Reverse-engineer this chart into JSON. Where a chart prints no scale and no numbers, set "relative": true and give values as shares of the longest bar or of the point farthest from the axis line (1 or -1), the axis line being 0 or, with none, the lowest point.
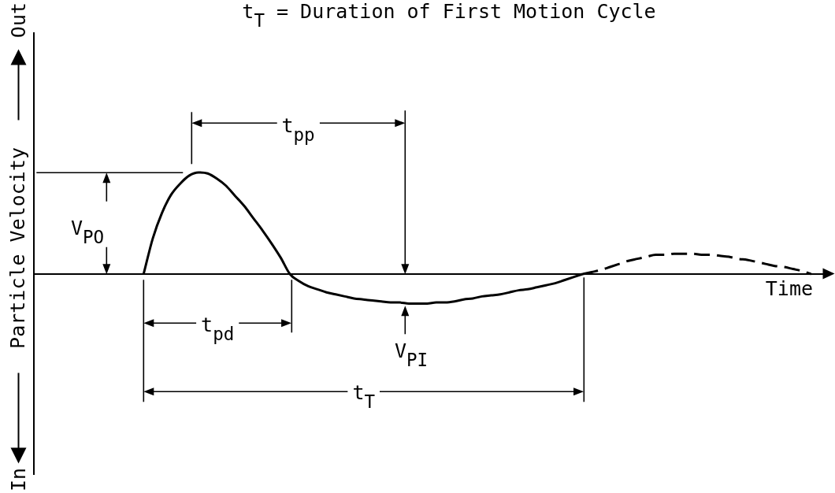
{
  "chart_data": {
    "type": "line",
    "title": "t$_{T}$ = Duration of First Motion Cycle",
    "xlabel": "Time",
    "ylabel": "Particle Velocity",
    "annotations": [
      "V$_{PO}$",
      "t$_{pp}$",
      "t$_{pd}$",
      "V$_{PI}$",
      "t$_{T}$",
      "Out",
      "In"
    ],
    "categories": [
      null,
      null,
      null,
      null,
      null,
      null,
      null,
      null,
      null,
      null,
      null,
      null,
      null,
      null,
      null,
      null,
      null,
      null,
      null,
      null,
      null,
      null,
      null,
      null,
      null,
      null,
      null,
      null,
      null,
      null,
      null,
      null,
      null,
      null,
      null,
      null,
      null,
      null,
      null,
      null,
      null,
      null,
      null,
      null,
      null,
      null,
      null,
      null,
      null,
      null,
      null,
      null,
      null,
      null,
      null,
      null,
      null,
      null,
      null,
      null,
      null,
      null,
      null,
      null,
      null,
      null,
      null,
      null,
      null,
      null,
      null,
      null,
      null,
      null,
      null,
      null,
      null,
      null,
      null,
      null,
      null,
      null,
      null,
      null,
      null,
      null,
      null,
      null
    ],
    "relative": true,
    "series": [
      {
        "color": "#000000",
        "line_style": "solid",
        "values": [
          null,
          null,
          null,
          null,
          null,
          null,
          null,
          null,
          null,
          null,
          null,
          null,
          0,
          0.35,
          0.6,
          0.78,
          0.89,
          0.97,
          1,
          0.99,
          0.94,
          0.87,
          0.77,
          0.67,
          0.55,
          0.43,
          0.3,
          0.16,
          0,
          -0.07,
          -0.12,
          -0.15,
          -0.18,
          -0.2,
          -0.22,
          -0.24,
          -0.25,
          -0.26,
          -0.27,
          -0.28,
          -0.28,
          -0.29,
          -0.29,
          -0.29,
          -0.28,
          -0.28,
          -0.27,
          -0.25,
          -0.24,
          -0.22,
          -0.21,
          -0.2,
          -0.18,
          -0.16,
          -0.15,
          -0.13,
          -0.11,
          -0.09,
          -0.06,
          -0.03,
          0,
          null,
          null,
          null,
          null,
          null,
          null,
          null,
          null,
          null,
          null,
          null,
          null,
          null,
          null,
          null,
          null,
          null,
          null,
          null,
          null,
          null,
          null,
          null,
          null,
          null,
          null,
          null
        ]
      },
      {
        "color": "#000000",
        "line_style": "dashed",
        "values": [
          null,
          null,
          null,
          null,
          null,
          null,
          null,
          null,
          null,
          null,
          null,
          null,
          null,
          null,
          null,
          null,
          null,
          null,
          null,
          null,
          null,
          null,
          null,
          null,
          null,
          null,
          null,
          null,
          null,
          null,
          null,
          null,
          null,
          null,
          null,
          null,
          null,
          null,
          null,
          null,
          null,
          null,
          null,
          null,
          null,
          null,
          null,
          null,
          null,
          null,
          null,
          null,
          null,
          null,
          null,
          null,
          null,
          null,
          null,
          null,
          0,
          0.02,
          0.04,
          0.07,
          0.1,
          0.13,
          0.15,
          0.17,
          0.19,
          0.19,
          0.2,
          0.2,
          0.2,
          0.19,
          0.19,
          0.18,
          0.17,
          0.15,
          0.14,
          0.12,
          0.1,
          0.08,
          0.07,
          0.05,
          0.03,
          0,
          null,
          null
        ]
      }
    ],
    "legend": false,
    "marker": "none"
  }
}
